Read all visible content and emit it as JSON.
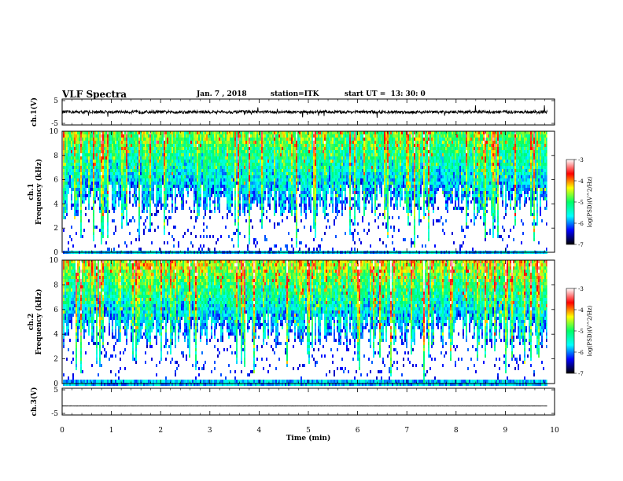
{
  "header": {
    "title": "VLF Spectra",
    "date": "Jan. 7 , 2018",
    "station": "station=ITK",
    "start": "start UT =  13: 30: 0"
  },
  "chart_data": [
    {
      "type": "line",
      "name": "ch1-waveform",
      "ylabel": "ch.1(V)",
      "yticks": [
        "5",
        "-5"
      ],
      "ylim": [
        -5,
        5
      ],
      "xlim": [
        0,
        10
      ],
      "baseline": 0,
      "noise_amplitude": 0.6
    },
    {
      "type": "heatmap",
      "name": "ch1-spectrogram",
      "ylabel": "ch.1\nFrequency (kHz)",
      "yticks": [
        "0",
        "2",
        "4",
        "6",
        "8",
        "10"
      ],
      "ylim": [
        0,
        10
      ],
      "xlim": [
        0,
        9.85
      ],
      "colorbar": {
        "label": "log(PSD)(V^2/Hz)",
        "ticks": [
          "-3",
          "-4",
          "-5",
          "-6",
          "-7"
        ],
        "range": [
          -7,
          -3
        ]
      }
    },
    {
      "type": "heatmap",
      "name": "ch2-spectrogram",
      "ylabel": "ch.2\nFrequency (kHz)",
      "yticks": [
        "0",
        "2",
        "4",
        "6",
        "8",
        "10"
      ],
      "ylim": [
        0,
        10
      ],
      "xlim": [
        0,
        9.85
      ],
      "colorbar": {
        "label": "log(PSD)(V^2/Hz)",
        "ticks": [
          "-3",
          "-4",
          "-5",
          "-6",
          "-7"
        ],
        "range": [
          -7,
          -3
        ]
      }
    },
    {
      "type": "line",
      "name": "ch3-waveform",
      "ylabel": "ch.3(V)",
      "yticks": [
        "5",
        "-5"
      ],
      "ylim": [
        -5,
        5
      ],
      "xlim": [
        0,
        10
      ],
      "baseline": -1.6,
      "noise_amplitude": 0.05
    }
  ],
  "xaxis": {
    "label": "Time (min)",
    "ticks": [
      "0",
      "1",
      "2",
      "3",
      "4",
      "5",
      "6",
      "7",
      "8",
      "9",
      "10"
    ],
    "range": [
      0,
      10
    ]
  },
  "colors": {
    "colormap": [
      "#000000",
      "#0000ff",
      "#00ffff",
      "#00ff66",
      "#ffff00",
      "#ff0000",
      "#ffffff"
    ]
  }
}
